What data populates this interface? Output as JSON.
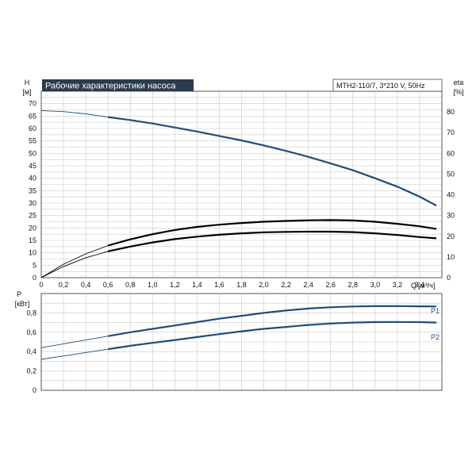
{
  "chart_data": [
    {
      "type": "line",
      "title": "Рабочие характеристики насоса",
      "model": "MTH2-110/7, 3*210 V, 50Hz",
      "ylabel": "H",
      "yunit": "[м]",
      "y2label": "eta",
      "y2unit": "[%]",
      "xlabel": "Q",
      "xunit": "[м³/ч]",
      "xlim": [
        0,
        3.6
      ],
      "ylim": [
        0,
        75
      ],
      "y2lim": [
        0,
        90
      ],
      "x_ticks": [
        "0",
        "0,2",
        "0,4",
        "0,6",
        "0,8",
        "1,0",
        "1,2",
        "1,4",
        "1,6",
        "1,8",
        "2,0",
        "2,2",
        "2,4",
        "2,6",
        "2,8",
        "3,0",
        "3,2",
        "3,4"
      ],
      "y_ticks": [
        "0",
        "5",
        "10",
        "15",
        "20",
        "25",
        "30",
        "35",
        "40",
        "45",
        "50",
        "55",
        "60",
        "65",
        "70"
      ],
      "y2_ticks": [
        "0",
        "10",
        "20",
        "30",
        "40",
        "50",
        "60",
        "70",
        "80"
      ],
      "grid": true,
      "series": [
        {
          "axis": "left",
          "color": "#1f4e79",
          "x": [
            0,
            0.2,
            0.4,
            0.6,
            0.8,
            1.0,
            1.2,
            1.4,
            1.6,
            1.8,
            2.0,
            2.2,
            2.4,
            2.6,
            2.8,
            3.0,
            3.2,
            3.4,
            3.55
          ],
          "y": [
            67.2,
            66.8,
            65.9,
            64.6,
            63.4,
            62.0,
            60.4,
            58.8,
            57.0,
            55.2,
            53.2,
            51.0,
            48.6,
            46.0,
            43.2,
            40.0,
            36.6,
            32.6,
            29.0
          ],
          "emph_from": 0.7
        },
        {
          "axis": "right",
          "color": "#000000",
          "x": [
            0,
            0.2,
            0.4,
            0.6,
            0.8,
            1.0,
            1.2,
            1.4,
            1.6,
            1.8,
            2.0,
            2.2,
            2.4,
            2.6,
            2.8,
            3.0,
            3.2,
            3.4,
            3.55
          ],
          "y": [
            0,
            6.5,
            11.5,
            15.5,
            18.5,
            21.0,
            23.0,
            24.5,
            25.6,
            26.4,
            27.0,
            27.4,
            27.7,
            27.8,
            27.6,
            27.0,
            26.0,
            24.8,
            23.5
          ],
          "emph_from": 0.7
        },
        {
          "axis": "right",
          "color": "#000000",
          "x": [
            0,
            0.2,
            0.4,
            0.6,
            0.8,
            1.0,
            1.2,
            1.4,
            1.6,
            1.8,
            2.0,
            2.2,
            2.4,
            2.6,
            2.8,
            3.0,
            3.2,
            3.4,
            3.55
          ],
          "y": [
            0,
            5.4,
            9.6,
            12.7,
            15.0,
            17.0,
            18.6,
            19.8,
            20.7,
            21.4,
            21.9,
            22.1,
            22.2,
            22.2,
            22.0,
            21.4,
            20.6,
            19.6,
            19.0
          ],
          "emph_from": 0.7
        }
      ]
    },
    {
      "type": "line",
      "ylabel": "P",
      "yunit": "[кВт]",
      "xlim": [
        0,
        3.6
      ],
      "ylim": [
        0,
        1.0
      ],
      "y_ticks": [
        "0",
        "0,2",
        "0,4",
        "0,6",
        "0,8"
      ],
      "grid": true,
      "series": [
        {
          "name": "P1",
          "color": "#1f4e79",
          "x": [
            0,
            0.2,
            0.4,
            0.6,
            0.8,
            1.0,
            1.2,
            1.4,
            1.6,
            1.8,
            2.0,
            2.2,
            2.4,
            2.6,
            2.8,
            3.0,
            3.2,
            3.4,
            3.55
          ],
          "y": [
            0.44,
            0.48,
            0.52,
            0.56,
            0.6,
            0.635,
            0.67,
            0.705,
            0.74,
            0.77,
            0.8,
            0.825,
            0.845,
            0.858,
            0.866,
            0.87,
            0.87,
            0.868,
            0.866
          ],
          "emph_from": 0.7
        },
        {
          "name": "P2",
          "color": "#1f4e79",
          "x": [
            0,
            0.2,
            0.4,
            0.6,
            0.8,
            1.0,
            1.2,
            1.4,
            1.6,
            1.8,
            2.0,
            2.2,
            2.4,
            2.6,
            2.8,
            3.0,
            3.2,
            3.4,
            3.55
          ],
          "y": [
            0.32,
            0.355,
            0.39,
            0.425,
            0.46,
            0.49,
            0.52,
            0.55,
            0.58,
            0.61,
            0.635,
            0.655,
            0.675,
            0.69,
            0.7,
            0.705,
            0.706,
            0.705,
            0.7
          ],
          "emph_from": 0.7
        }
      ]
    }
  ]
}
